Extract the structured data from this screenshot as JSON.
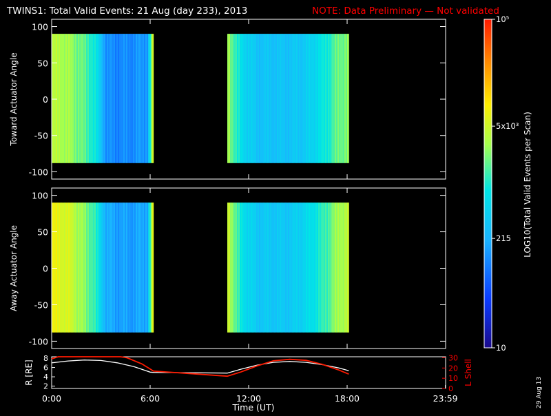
{
  "header": {
    "title": "TWINS1: Total Valid Events: 21 Aug (day 233), 2013",
    "note": "NOTE: Data Preliminary — Not validated"
  },
  "side_date": "29 Aug 13",
  "colors": {
    "background": "#000000",
    "note": "#ff0000",
    "axis": "#ffffff",
    "r_line": "#ffffff",
    "lshell_line": "#ff0000"
  },
  "chart_data": [
    {
      "type": "heatmap",
      "name": "toward",
      "ylabel": "Toward Actuator Angle",
      "ylim": [
        -110,
        110
      ],
      "yticks": [
        "100",
        "50",
        "0",
        "-50",
        "-100"
      ],
      "y_tick_values": [
        100,
        50,
        0,
        -50,
        -100
      ],
      "angle_range": [
        -88,
        90
      ],
      "xlim_hours": [
        0,
        24
      ],
      "data_intervals_hours": [
        [
          0.0,
          6.2
        ],
        [
          10.7,
          18.1
        ]
      ],
      "profile_hours": [
        0.0,
        0.5,
        1.0,
        1.5,
        2.0,
        2.5,
        2.9,
        3.3,
        4.0,
        5.0,
        5.8,
        6.1,
        6.2,
        10.7,
        11.5,
        12.5,
        13.5,
        14.5,
        15.5,
        16.5,
        17.0,
        17.5,
        18.1
      ],
      "log10_events": [
        3.55,
        3.55,
        3.45,
        3.35,
        3.2,
        3.0,
        2.6,
        2.1,
        2.05,
        2.1,
        2.2,
        3.6,
        3.6,
        3.5,
        2.8,
        2.5,
        2.5,
        2.5,
        2.6,
        2.9,
        3.1,
        3.3,
        3.35
      ],
      "grid": false
    },
    {
      "type": "heatmap",
      "name": "away",
      "ylabel": "Away Actuator Angle",
      "ylim": [
        -110,
        110
      ],
      "yticks": [
        "100",
        "50",
        "0",
        "-50",
        "-100"
      ],
      "y_tick_values": [
        100,
        50,
        0,
        -50,
        -100
      ],
      "angle_range": [
        -88,
        90
      ],
      "xlim_hours": [
        0,
        24
      ],
      "data_intervals_hours": [
        [
          0.0,
          6.2
        ],
        [
          10.7,
          18.1
        ]
      ],
      "profile_hours": [
        0.0,
        0.5,
        1.0,
        1.5,
        2.0,
        2.5,
        2.9,
        3.3,
        4.0,
        5.0,
        5.8,
        6.1,
        6.2,
        10.7,
        11.5,
        12.5,
        13.5,
        14.5,
        15.5,
        16.5,
        17.0,
        17.5,
        18.1
      ],
      "log10_events": [
        3.85,
        3.8,
        3.7,
        3.55,
        3.35,
        3.15,
        2.75,
        2.3,
        2.2,
        2.2,
        2.3,
        3.7,
        3.7,
        3.7,
        2.9,
        2.55,
        2.55,
        2.55,
        2.75,
        3.05,
        3.3,
        3.5,
        3.6
      ],
      "grid": false
    },
    {
      "type": "line",
      "name": "orbit",
      "ylabel": "R [RE]",
      "y2label": "L Shell",
      "xlabel": "Time (UT)",
      "xticks": [
        "0:00",
        "6:00",
        "12:00",
        "18:00",
        "23:59"
      ],
      "xtick_hours": [
        0,
        6,
        12,
        18,
        23.983
      ],
      "ylim": [
        1.5,
        8.3
      ],
      "yticks": [
        "8",
        "6",
        "4",
        "2"
      ],
      "y_tick_values": [
        8,
        6,
        4,
        2
      ],
      "y2lim": [
        0,
        31
      ],
      "y2ticks": [
        "30",
        "20",
        "10",
        "0"
      ],
      "y2_tick_values": [
        30,
        20,
        10,
        0
      ],
      "series": [
        {
          "name": "R",
          "axis": "left",
          "x_hours": [
            0.0,
            1.0,
            2.0,
            3.0,
            4.0,
            5.0,
            5.5,
            6.0,
            6.2,
            10.7,
            11.5,
            12.5,
            13.5,
            14.5,
            15.5,
            16.5,
            17.5,
            18.1
          ],
          "values": [
            7.0,
            7.4,
            7.6,
            7.5,
            7.0,
            6.2,
            5.6,
            5.0,
            4.95,
            4.8,
            5.6,
            6.5,
            7.1,
            7.3,
            7.1,
            6.6,
            5.9,
            5.3
          ]
        },
        {
          "name": "L",
          "axis": "right",
          "x_hours": [
            0.0,
            0.4,
            0.55,
            4.2,
            4.6,
            5.5,
            6.2,
            8.0,
            10.7,
            11.5,
            12.5,
            13.5,
            14.5,
            15.5,
            16.5,
            17.5,
            18.1
          ],
          "values": [
            29,
            31,
            31,
            31,
            30,
            24,
            17,
            15,
            12,
            16,
            22,
            27,
            28.5,
            27.5,
            23.5,
            18,
            14
          ]
        }
      ]
    },
    {
      "type": "colorbar",
      "label": "LOG10(Total Valid Events per Scan)",
      "tick_labels": [
        "10⁵",
        "5x10³",
        "215",
        "10"
      ],
      "tick_log_values": [
        5.0,
        3.699,
        2.332,
        1.0
      ],
      "range_log": [
        1,
        5
      ]
    }
  ]
}
